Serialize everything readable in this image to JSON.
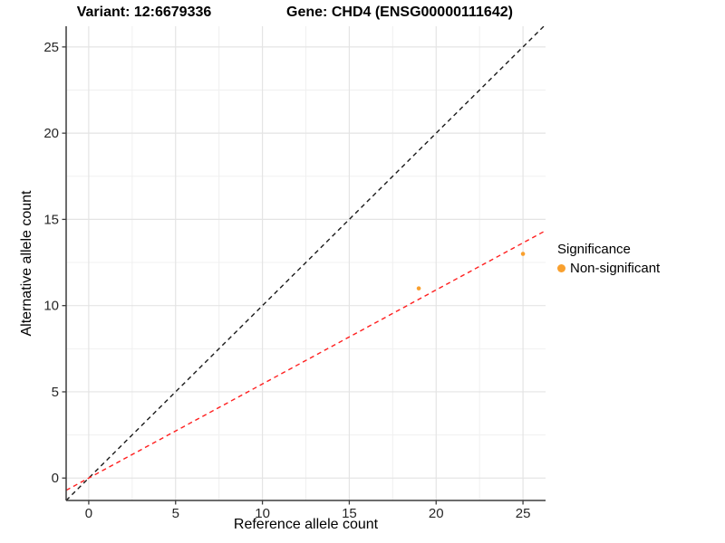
{
  "titles": {
    "left": "Variant: 12:6679336",
    "right": "Gene: CHD4 (ENSG00000111642)"
  },
  "chart_data": {
    "type": "scatter",
    "title_left": "Variant: 12:6679336",
    "title_right": "Gene: CHD4 (ENSG00000111642)",
    "xlabel": "Reference allele count",
    "ylabel": "Alternative allele count",
    "xlim": [
      -1.3,
      26.3
    ],
    "ylim": [
      -1.3,
      26.2
    ],
    "x_ticks": [
      0,
      5,
      10,
      15,
      20,
      25
    ],
    "y_ticks": [
      0,
      5,
      10,
      15,
      20,
      25
    ],
    "minor_step": 2.5,
    "grid": true,
    "colors": {
      "point": "#F9A02E",
      "identity_line": "#1A1A1A",
      "fit_line": "#FF1F1F",
      "major_grid": "#E4E4E4",
      "minor_grid": "#F0F0F0",
      "axis_line": "#3C3C3C",
      "tick_text": "#262626"
    },
    "series": [
      {
        "name": "Non-significant",
        "color": "#F9A02E",
        "points": [
          {
            "x": 19,
            "y": 11
          },
          {
            "x": 25,
            "y": 13
          }
        ]
      }
    ],
    "lines": [
      {
        "name": "identity-line",
        "slope": 1,
        "intercept": 0,
        "color": "#1A1A1A",
        "dash": "dashed"
      },
      {
        "name": "fit-line",
        "slope": 0.5455,
        "intercept": 0,
        "color": "#FF1F1F",
        "dash": "dashed"
      }
    ],
    "legend": {
      "title": "Significance",
      "position": "right",
      "items": [
        {
          "label": "Non-significant",
          "color": "#F9A02E"
        }
      ]
    }
  }
}
